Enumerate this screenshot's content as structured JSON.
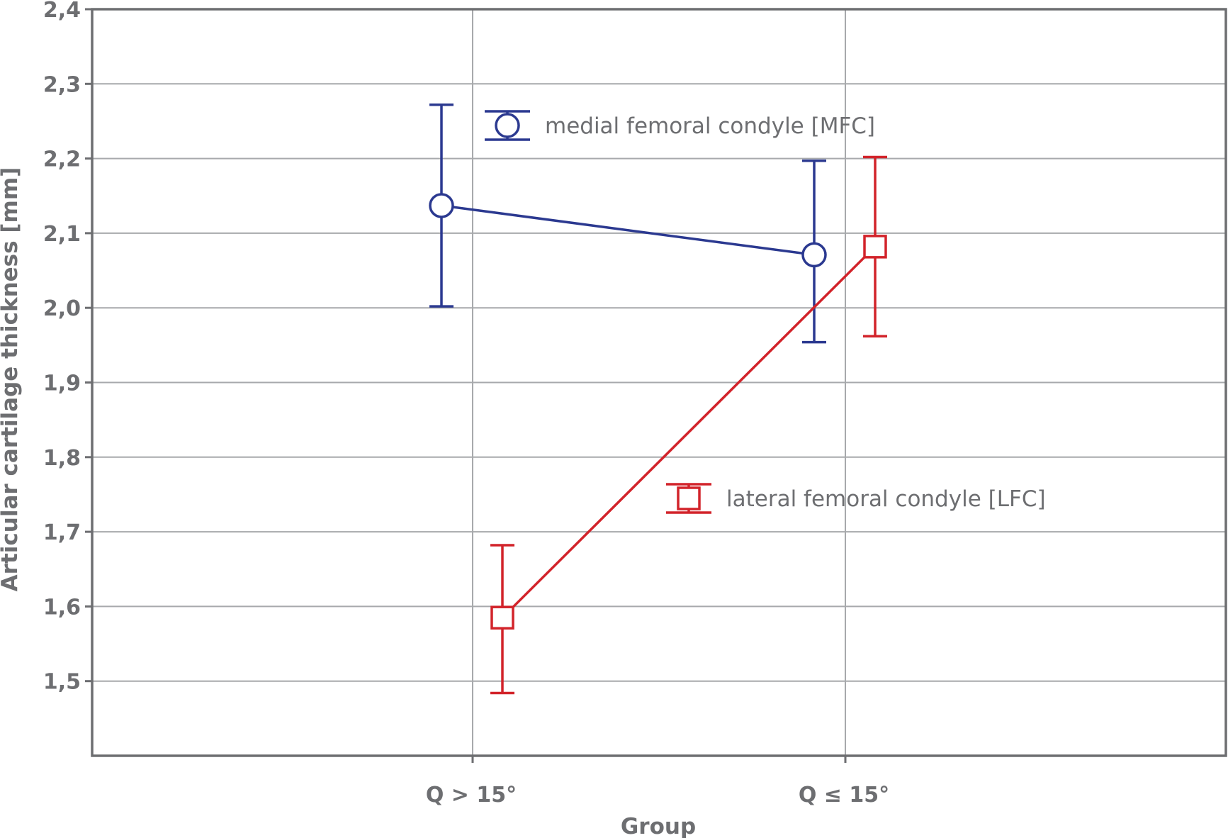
{
  "chart_data": {
    "type": "line",
    "xlabel": "Group",
    "ylabel": "Articular cartilage thickness [mm]",
    "categories": [
      "Q > 15°",
      "Q ≤ 15°"
    ],
    "ylim": [
      1.4,
      2.4
    ],
    "yticks": [
      "1,5",
      "1,6",
      "1,7",
      "1,8",
      "1,9",
      "2,0",
      "2,1",
      "2,2",
      "2,3",
      "2,4"
    ],
    "grid": true,
    "legend_placement": "inside, next to each series",
    "series": [
      {
        "name": "medial femoral condyle [MFC]",
        "color": "#2b3990",
        "marker": "circle",
        "values": [
          2.137,
          2.071
        ],
        "lower": [
          2.002,
          1.954
        ],
        "upper": [
          2.272,
          2.197
        ]
      },
      {
        "name": "lateral femoral condyle [LFC]",
        "color": "#d2232a",
        "marker": "square",
        "values": [
          1.585,
          2.082
        ],
        "lower": [
          1.484,
          1.962
        ],
        "upper": [
          1.682,
          2.202
        ]
      }
    ]
  }
}
